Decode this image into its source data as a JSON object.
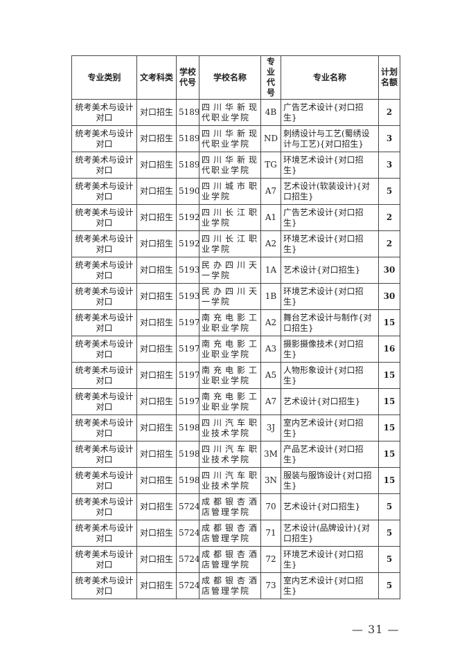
{
  "headers": [
    "专业类别",
    "文考科类",
    "学校代号",
    "学校名称",
    "专业代号",
    "专业名称",
    "计划名额"
  ],
  "rows": [
    [
      "统考美术与设计对口",
      "对口招生",
      "5189",
      "四川华新现代职业学院",
      "4B",
      "广告艺术设计{对口招生}",
      "2"
    ],
    [
      "统考美术与设计对口",
      "对口招生",
      "5189",
      "四川华新现代职业学院",
      "ND",
      "刺绣设计与工艺(蜀绣设计与工艺){对口招生}",
      "3"
    ],
    [
      "统考美术与设计对口",
      "对口招生",
      "5189",
      "四川华新现代职业学院",
      "TG",
      "环境艺术设计{对口招生}",
      "3"
    ],
    [
      "统考美术与设计对口",
      "对口招生",
      "5190",
      "四川城市职业学院",
      "A7",
      "艺术设计(软装设计){对口招生}",
      "5"
    ],
    [
      "统考美术与设计对口",
      "对口招生",
      "5192",
      "四川长江职业学院",
      "A1",
      "广告艺术设计{对口招生}",
      "2"
    ],
    [
      "统考美术与设计对口",
      "对口招生",
      "5192",
      "四川长江职业学院",
      "A2",
      "环境艺术设计{对口招生}",
      "2"
    ],
    [
      "统考美术与设计对口",
      "对口招生",
      "5193",
      "民办四川天一学院",
      "1A",
      "艺术设计{对口招生}",
      "30"
    ],
    [
      "统考美术与设计对口",
      "对口招生",
      "5193",
      "民办四川天一学院",
      "1B",
      "环境艺术设计{对口招生}",
      "30"
    ],
    [
      "统考美术与设计对口",
      "对口招生",
      "5197",
      "南充电影工业职业学院",
      "A2",
      "舞台艺术设计与制作{对口招生}",
      "15"
    ],
    [
      "统考美术与设计对口",
      "对口招生",
      "5197",
      "南充电影工业职业学院",
      "A3",
      "摄影摄像技术{对口招生}",
      "16"
    ],
    [
      "统考美术与设计对口",
      "对口招生",
      "5197",
      "南充电影工业职业学院",
      "A5",
      "人物形象设计{对口招生}",
      "15"
    ],
    [
      "统考美术与设计对口",
      "对口招生",
      "5197",
      "南充电影工业职业学院",
      "A7",
      "艺术设计{对口招生}",
      "15"
    ],
    [
      "统考美术与设计对口",
      "对口招生",
      "5198",
      "四川汽车职业技术学院",
      "3J",
      "室内艺术设计{对口招生}",
      "15"
    ],
    [
      "统考美术与设计对口",
      "对口招生",
      "5198",
      "四川汽车职业技术学院",
      "3M",
      "产品艺术设计{对口招生}",
      "15"
    ],
    [
      "统考美术与设计对口",
      "对口招生",
      "5198",
      "四川汽车职业技术学院",
      "3N",
      "服装与服饰设计{对口招生}",
      "15"
    ],
    [
      "统考美术与设计对口",
      "对口招生",
      "5724",
      "成都银杏酒店管理学院",
      "70",
      "艺术设计{对口招生}",
      "5"
    ],
    [
      "统考美术与设计对口",
      "对口招生",
      "5724",
      "成都银杏酒店管理学院",
      "71",
      "艺术设计(品牌设计){对口招生}",
      "5"
    ],
    [
      "统考美术与设计对口",
      "对口招生",
      "5724",
      "成都银杏酒店管理学院",
      "72",
      "环境艺术设计{对口招生}",
      "5"
    ],
    [
      "统考美术与设计对口",
      "对口招生",
      "5724",
      "成都银杏酒店管理学院",
      "73",
      "室内艺术设计{对口招生}",
      "5"
    ]
  ],
  "page_number": "— 31 —"
}
